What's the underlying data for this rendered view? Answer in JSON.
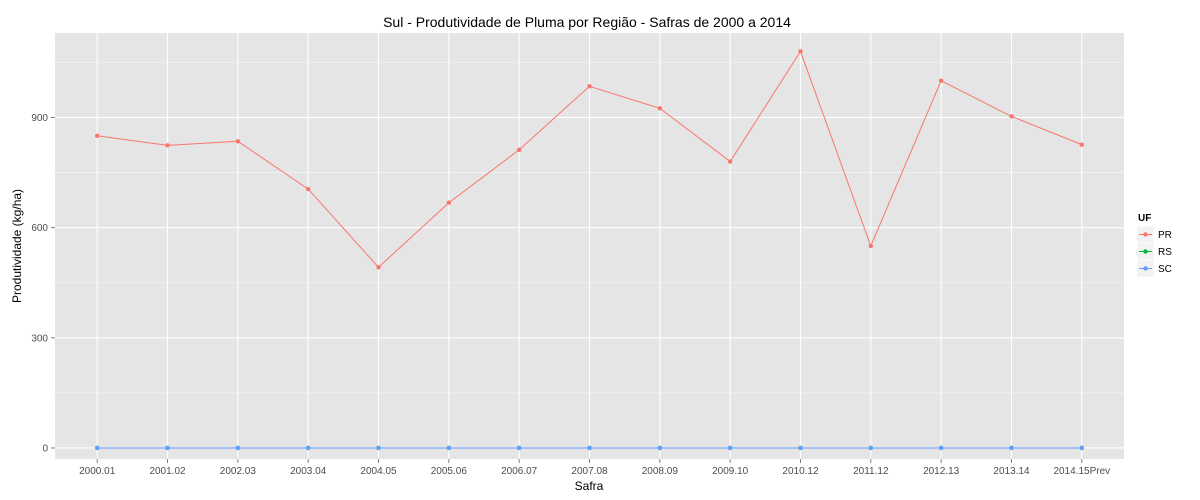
{
  "chart_data": {
    "type": "line",
    "title": "Sul  - Produtividade de Pluma por Região - Safras de 2000 a 2014",
    "xlabel": "Safra",
    "ylabel": "Produtividade (kg/ha)",
    "categories": [
      "2000.01",
      "2001.02",
      "2002.03",
      "2003.04",
      "2004.05",
      "2005.06",
      "2006.07",
      "2007.08",
      "2008.09",
      "2009.10",
      "2010.12",
      "2011.12",
      "2012.13",
      "2013.14",
      "2014.15Prev"
    ],
    "ylim": [
      -30,
      1130
    ],
    "yticks": [
      0,
      300,
      600,
      900
    ],
    "grid": true,
    "legend": {
      "title": "UF",
      "position": "right"
    },
    "series": [
      {
        "name": "PR",
        "color": "#F8766D",
        "values": [
          850,
          824,
          835,
          705,
          492,
          668,
          812,
          985,
          925,
          780,
          1080,
          550,
          1000,
          903,
          826
        ]
      },
      {
        "name": "RS",
        "color": "#00BA38",
        "values": [
          0,
          0,
          0,
          0,
          0,
          0,
          0,
          0,
          0,
          0,
          0,
          0,
          0,
          0,
          0
        ]
      },
      {
        "name": "SC",
        "color": "#619CFF",
        "values": [
          0,
          0,
          0,
          0,
          0,
          0,
          0,
          0,
          0,
          0,
          0,
          0,
          0,
          0,
          0
        ]
      }
    ]
  }
}
